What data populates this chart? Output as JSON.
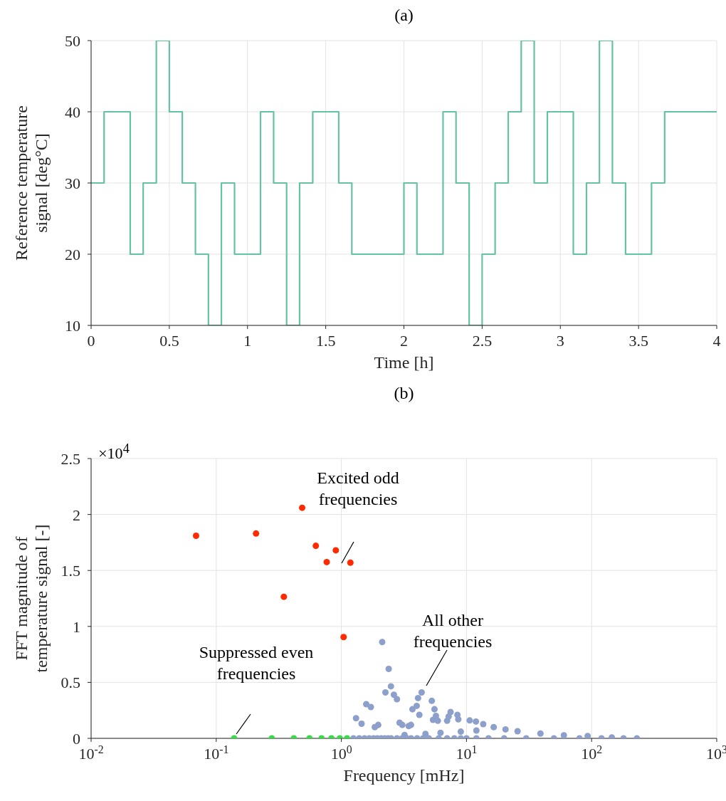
{
  "chart_data": [
    {
      "type": "step",
      "title": "(a)",
      "xlabel": "Time [h]",
      "ylabel": "Reference temperature\nsignal [deg°C]",
      "x": [
        0,
        0.083,
        0.25,
        0.333,
        0.417,
        0.5,
        0.583,
        0.667,
        0.75,
        0.833,
        0.917,
        1.083,
        1.167,
        1.25,
        1.333,
        1.417,
        1.583,
        1.667,
        2.0,
        2.083,
        2.25,
        2.333,
        2.417,
        2.5,
        2.583,
        2.667,
        2.75,
        2.833,
        2.917,
        3.083,
        3.167,
        3.25,
        3.333,
        3.417,
        3.583,
        3.667,
        4
      ],
      "values": [
        30,
        40,
        20,
        30,
        50,
        40,
        30,
        20,
        10,
        30,
        20,
        40,
        30,
        10,
        30,
        40,
        30,
        20,
        30,
        20,
        40,
        30,
        10,
        20,
        30,
        40,
        50,
        30,
        40,
        20,
        30,
        50,
        30,
        20,
        30,
        40,
        40
      ],
      "color": "#66c2a5",
      "line_style": "solid",
      "marker": "none",
      "xlim": [
        0,
        4
      ],
      "xticks": [
        0,
        0.5,
        1,
        1.5,
        2,
        2.5,
        3,
        3.5,
        4
      ],
      "ylim": [
        10,
        50
      ],
      "yticks": [
        10,
        20,
        30,
        40,
        50
      ],
      "grid": true
    },
    {
      "type": "scatter",
      "title": "(b)",
      "xlabel": "Frequency [mHz]",
      "ylabel": "FFT magnitude of\ntemperature signal [-]",
      "log": "x",
      "marker": "circle",
      "xlim": [
        0.01,
        1000
      ],
      "xticks": [
        {
          "value": 0.01,
          "label": "10$^{-2}$"
        },
        {
          "value": 0.1,
          "label": "10$^{-1}$"
        },
        {
          "value": 1,
          "label": "10$^{0}$"
        },
        {
          "value": 10,
          "label": "10$^{1}$"
        },
        {
          "value": 100,
          "label": "10$^{2}$"
        },
        {
          "value": 1000,
          "label": "10$^{3}$"
        }
      ],
      "ylim": [
        0,
        2.5
      ],
      "yticks": [
        0,
        0.5,
        1,
        1.5,
        2,
        2.5
      ],
      "grid": true,
      "series": [
        {
          "color": "#8da0cb",
          "x": [
            1.25,
            1.39,
            1.53,
            1.67,
            1.81,
            1.94,
            2.08,
            2.22,
            2.36,
            2.5,
            2.78,
            3.06,
            3.33,
            3.61,
            4.03,
            4.5,
            5,
            6,
            7,
            8,
            9,
            10,
            12,
            15,
            20,
            30,
            50,
            80,
            120,
            180,
            3.2,
            4.7,
            6.2,
            9,
            12,
            1.31,
            1.45,
            1.58,
            1.72,
            1.85,
            1.97,
            2.12,
            2.25,
            2.39,
            2.49,
            2.63,
            2.78,
            2.92,
            3.07,
            3.45,
            3.6,
            3.7,
            4.0,
            4.1,
            4.2,
            4.38,
            5.28,
            5.4,
            5.55,
            5.7,
            5.9,
            7.0,
            7.2,
            7.46,
            8.46,
            8.6,
            10.6,
            11.9,
            13.6,
            16.5,
            20.5,
            25.6,
            39,
            60,
            93,
            145,
            230
          ],
          "values": [
            0,
            0,
            0,
            0,
            0,
            0,
            0,
            0,
            0,
            0,
            0,
            0,
            0,
            0,
            0,
            0,
            0,
            0,
            0,
            0,
            0,
            0,
            0,
            0,
            0,
            0,
            0,
            0,
            0,
            0,
            0.03,
            0.04,
            0.05,
            0.06,
            0.07,
            0.18,
            0.13,
            0.305,
            0.28,
            0.1,
            0.12,
            0.86,
            0.41,
            0.62,
            0.465,
            0.39,
            0.35,
            0.14,
            0.12,
            0.11,
            0.12,
            0.26,
            0.29,
            0.36,
            0.21,
            0.41,
            0.335,
            0.165,
            0.26,
            0.2,
            0.157,
            0.157,
            0.195,
            0.235,
            0.21,
            0.17,
            0.16,
            0.15,
            0.127,
            0.1,
            0.08,
            0.064,
            0.043,
            0.027,
            0.021,
            0.008,
            0
          ]
        },
        {
          "color": "#ff2a00",
          "x": [
            0.069,
            0.208,
            0.347,
            0.486,
            0.625,
            0.764,
            0.903,
            1.042,
            1.181
          ],
          "values": [
            1.81,
            1.83,
            1.265,
            2.06,
            1.72,
            1.575,
            1.68,
            0.905,
            1.57
          ]
        },
        {
          "color": "#33dd44",
          "x": [
            0.139,
            0.278,
            0.417,
            0.556,
            0.694,
            0.833,
            0.972,
            1.111
          ],
          "values": [
            0,
            0,
            0,
            0,
            0,
            0,
            0,
            0
          ]
        }
      ],
      "annotations": [
        "×10$^{4}$",
        "Excited odd\nfrequencies",
        "All other\nfrequencies",
        "Suppressed even\nfrequencies"
      ]
    }
  ]
}
